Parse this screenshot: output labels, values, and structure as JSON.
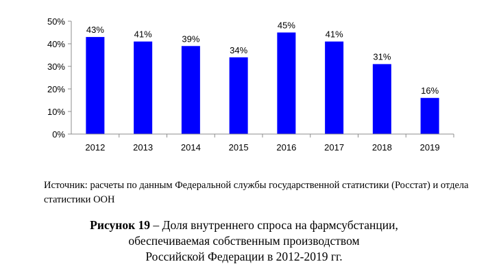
{
  "chart_data": {
    "type": "bar",
    "categories": [
      "2012",
      "2013",
      "2014",
      "2015",
      "2016",
      "2017",
      "2018",
      "2019"
    ],
    "values": [
      43,
      41,
      39,
      34,
      45,
      41,
      31,
      16
    ],
    "data_labels": [
      "43%",
      "41%",
      "39%",
      "34%",
      "45%",
      "41%",
      "31%",
      "16%"
    ],
    "y_ticks": [
      "0%",
      "10%",
      "20%",
      "30%",
      "40%",
      "50%"
    ],
    "ylim": [
      0,
      50
    ],
    "bar_color": "#0000ff",
    "grid": false
  },
  "source_text": "Источник: расчеты по данным Федеральной службы государственной статистики (Росстат) и отдела статистики ООН",
  "caption": {
    "label": "Рисунок 19",
    "line1": " – Доля внутреннего спроса на фармсубстанции,",
    "line2": "обеспечиваемая собственным производством",
    "line3": "Российской Федерации в 2012-2019 гг."
  }
}
